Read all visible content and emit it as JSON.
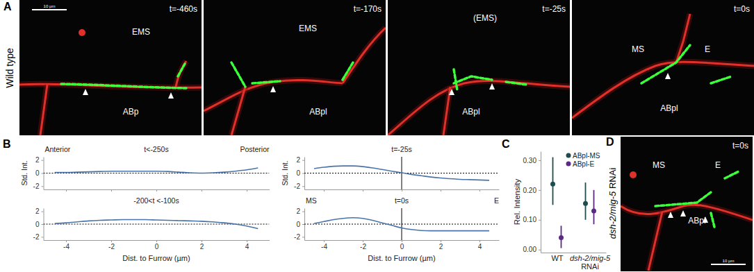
{
  "panel_labels": [
    "A",
    "B",
    "C",
    "D"
  ],
  "microscopy": {
    "scale_bar": "10 µm",
    "row_a_label": "Wild type",
    "row_d_label": "dsh-2/mig-5 RNAi",
    "panels": [
      {
        "time": "t=-460s",
        "cells": [
          "EMS",
          "ABp"
        ]
      },
      {
        "time": "t=-170s",
        "cells": [
          "EMS",
          "ABpl"
        ]
      },
      {
        "time": "t=-25s",
        "cells": [
          "(EMS)",
          "ABpl"
        ]
      },
      {
        "time": "t=0s",
        "cells": [
          "MS",
          "E",
          "ABpl"
        ]
      },
      {
        "time": "t=0s",
        "cells": [
          "MS",
          "E",
          "ABpl"
        ]
      }
    ]
  },
  "chart_data": [
    {
      "type": "line",
      "title": "t<-250s",
      "x": [
        -4.5,
        -4,
        -3.5,
        -3,
        -2.5,
        -2,
        -1.5,
        -1,
        -0.5,
        0,
        0.5,
        1,
        1.5,
        2,
        2.5,
        3,
        3.5,
        4,
        4.5
      ],
      "series": [
        {
          "color": "#4a74a8",
          "values": [
            0.1,
            0.1,
            0.15,
            0.2,
            0.25,
            0.3,
            0.3,
            0.3,
            0.3,
            0.3,
            0.25,
            0.15,
            0.05,
            0.0,
            0.05,
            0.15,
            0.3,
            0.5,
            0.8
          ]
        }
      ],
      "xlim": [
        -5,
        5
      ],
      "ylim": [
        -2.5,
        2.5
      ],
      "xticks": [
        -4,
        -2,
        0,
        2,
        4
      ],
      "yticks": [
        -2,
        0,
        2
      ],
      "ylabel": "Std. Int.",
      "tick_labels": "y",
      "annotations": [
        "Anterior",
        "Posterior"
      ],
      "hlines": [
        0
      ]
    },
    {
      "type": "line",
      "title": "-200<t <-100s",
      "x": [
        -4.5,
        -4,
        -3.5,
        -3,
        -2.5,
        -2,
        -1.5,
        -1,
        -0.5,
        0,
        0.5,
        1,
        1.5,
        2,
        2.5,
        3,
        3.5,
        4,
        4.5
      ],
      "series": [
        {
          "color": "#4a74a8",
          "values": [
            0.1,
            0.2,
            0.35,
            0.5,
            0.6,
            0.65,
            0.7,
            0.7,
            0.7,
            0.65,
            0.6,
            0.55,
            0.5,
            0.45,
            0.35,
            0.2,
            0.0,
            -0.3,
            -0.7
          ]
        }
      ],
      "xlim": [
        -5,
        5
      ],
      "ylim": [
        -2.5,
        2.5
      ],
      "xticks": [
        -4,
        -2,
        0,
        2,
        4
      ],
      "yticks": [
        -2,
        0,
        2
      ],
      "xlabel": "Dist. to Furrow (µm)",
      "hlines": [
        0
      ]
    },
    {
      "type": "line",
      "title": "t=-25s",
      "x": [
        -4.5,
        -4,
        -3.5,
        -3,
        -2.5,
        -2,
        -1.5,
        -1,
        -0.5,
        0,
        0.5,
        1,
        1.5,
        2,
        2.5,
        3,
        3.5,
        4,
        4.5
      ],
      "series": [
        {
          "color": "#4a74a8",
          "values": [
            0.7,
            0.9,
            1.05,
            1.1,
            1.1,
            1.0,
            0.8,
            0.55,
            0.3,
            0.05,
            -0.2,
            -0.4,
            -0.6,
            -0.75,
            -0.85,
            -0.95,
            -1.0,
            -1.05,
            -1.1
          ]
        }
      ],
      "xlim": [
        -5,
        5
      ],
      "ylim": [
        -2.5,
        2.5
      ],
      "xticks": [
        -4,
        -2,
        0,
        2,
        4
      ],
      "yticks": [
        -2,
        0,
        2
      ],
      "ylabel": "Std. Int.",
      "tick_labels": "y",
      "hlines": [
        0
      ],
      "vlines": [
        0
      ]
    },
    {
      "type": "line",
      "title": "t=0s",
      "x": [
        -4.5,
        -4,
        -3.5,
        -3,
        -2.5,
        -2,
        -1.5,
        -1,
        -0.5,
        0,
        0.5,
        1,
        1.5,
        2,
        2.5,
        3,
        3.5,
        4,
        4.5
      ],
      "series": [
        {
          "color": "#4a74a8",
          "values": [
            0.1,
            0.4,
            0.7,
            0.9,
            1.0,
            0.9,
            0.6,
            0.2,
            -0.2,
            -0.6,
            -0.85,
            -1.0,
            -1.05,
            -1.05,
            -1.05,
            -1.05,
            -1.05,
            -1.05,
            -1.05
          ]
        }
      ],
      "xlim": [
        -5,
        5
      ],
      "ylim": [
        -2.5,
        2.5
      ],
      "xticks": [
        -4,
        -2,
        0,
        2,
        4
      ],
      "yticks": [
        -2,
        0,
        2
      ],
      "xlabel": "Dist. to Furrow (µm)",
      "annotations": [
        "MS",
        "E"
      ],
      "hlines": [
        0
      ],
      "vlines": [
        0
      ]
    },
    {
      "type": "errorbar",
      "categories": [
        "WT",
        "dsh-2/mig-5\nRNAi"
      ],
      "series": [
        {
          "name": "ABpl-MS",
          "color": "#1f4d4d",
          "values": [
            0.22,
            0.155
          ],
          "lower": [
            0.15,
            0.1
          ],
          "upper": [
            0.31,
            0.225
          ]
        },
        {
          "name": "ABpl-E",
          "color": "#5b2a82",
          "values": [
            0.04,
            0.13
          ],
          "lower": [
            0.005,
            0.085
          ],
          "upper": [
            0.08,
            0.2
          ]
        }
      ],
      "ylim": [
        -0.01,
        0.33
      ],
      "yticks": [
        {
          "value": 0,
          "label": "0.00"
        },
        {
          "value": 0.1,
          "label": "0.10"
        },
        {
          "value": 0.2,
          "label": "0.20"
        },
        {
          "value": 0.3,
          "label": "0.30"
        }
      ],
      "ylabel": "Rel. Intensity",
      "legend": "top-right"
    }
  ]
}
